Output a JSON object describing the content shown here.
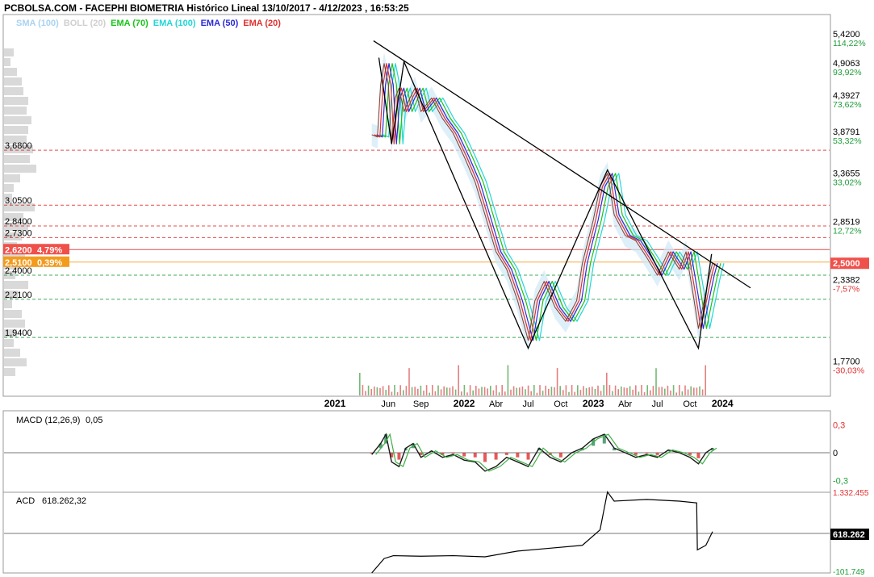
{
  "header": {
    "title": "PCBOLSA.COM - FACEPHI BIOMETRIA Histórico Lineal 13/10/2017 - 4/12/2023 , 16:53:25"
  },
  "legend": [
    {
      "label": "SMA (100)",
      "color": "#a9d3f2"
    },
    {
      "label": "BOLL (20)",
      "color": "#cfcfcf"
    },
    {
      "label": "EMA (70)",
      "color": "#19c419"
    },
    {
      "label": "EMA (100)",
      "color": "#22d6d6"
    },
    {
      "label": "EMA (50)",
      "color": "#2a2ad8"
    },
    {
      "label": "EMA (20)",
      "color": "#e03030"
    }
  ],
  "right_axis": [
    {
      "price": "5,4200",
      "pct": "114,22%",
      "pct_color": "#1f9d3a"
    },
    {
      "price": "4,9063",
      "pct": "93,92%",
      "pct_color": "#1f9d3a"
    },
    {
      "price": "4,3927",
      "pct": "73,62%",
      "pct_color": "#1f9d3a"
    },
    {
      "price": "3,8791",
      "pct": "53,32%",
      "pct_color": "#1f9d3a"
    },
    {
      "price": "3,3655",
      "pct": "33,02%",
      "pct_color": "#1f9d3a"
    },
    {
      "price": "2,8519",
      "pct": "12,72%",
      "pct_color": "#1f9d3a"
    },
    {
      "price": "2,3382",
      "pct": "-7,57%",
      "pct_color": "#e03030"
    },
    {
      "price": "1,7700",
      "pct": "-30,03%",
      "pct_color": "#e03030"
    }
  ],
  "left_levels": [
    "3,6800",
    "3,0500",
    "2,8400",
    "2,7300",
    "2,4000",
    "2,2100",
    "1,9400"
  ],
  "left_badges": [
    {
      "price": "2,6200",
      "pct": "4,79%",
      "color": "#f0504a"
    },
    {
      "price": "2,5100",
      "pct": "0,39%",
      "color": "#f29b1d"
    }
  ],
  "current_price_badge": "2,5000",
  "x_axis_ticks": [
    {
      "label": "2021",
      "bold": true
    },
    {
      "label": "Jun",
      "bold": false
    },
    {
      "label": "Sep",
      "bold": false
    },
    {
      "label": "2022",
      "bold": true
    },
    {
      "label": "Abr",
      "bold": false
    },
    {
      "label": "Jul",
      "bold": false
    },
    {
      "label": "Oct",
      "bold": false
    },
    {
      "label": "2023",
      "bold": true
    },
    {
      "label": "Abr",
      "bold": false
    },
    {
      "label": "Jul",
      "bold": false
    },
    {
      "label": "Oct",
      "bold": false
    },
    {
      "label": "2024",
      "bold": true
    }
  ],
  "macd": {
    "label": "MACD (12,26,9)",
    "value": "0,05",
    "axis": [
      "0,3",
      "0",
      "-0,3"
    ]
  },
  "acd": {
    "label": "ACD",
    "value": "618.262,32",
    "axis_top": "1.332.455",
    "axis_bottom": "-101.749",
    "badge": "618.262"
  },
  "chart_data": {
    "type": "line",
    "title": "PCBOLSA.COM - FACEPHI BIOMETRIA Histórico Lineal 13/10/2017 - 4/12/2023 , 16:53:25",
    "price_series": [
      [
        "2021-04-15",
        3.88
      ],
      [
        "2021-05-01",
        3.85
      ],
      [
        "2021-05-10",
        4.6
      ],
      [
        "2021-05-20",
        4.95
      ],
      [
        "2021-06-01",
        4.6
      ],
      [
        "2021-06-10",
        3.76
      ],
      [
        "2021-06-20",
        4.4
      ],
      [
        "2021-07-01",
        4.55
      ],
      [
        "2021-07-15",
        4.2
      ],
      [
        "2021-08-01",
        4.4
      ],
      [
        "2021-08-15",
        4.55
      ],
      [
        "2021-09-01",
        4.2
      ],
      [
        "2021-10-01",
        4.4
      ],
      [
        "2021-11-01",
        4.1
      ],
      [
        "2021-12-01",
        3.9
      ],
      [
        "2022-01-01",
        3.6
      ],
      [
        "2022-02-01",
        3.3
      ],
      [
        "2022-03-01",
        2.95
      ],
      [
        "2022-04-01",
        2.6
      ],
      [
        "2022-05-01",
        2.45
      ],
      [
        "2022-06-01",
        2.2
      ],
      [
        "2022-07-01",
        1.92
      ],
      [
        "2022-07-20",
        2.2
      ],
      [
        "2022-08-15",
        2.35
      ],
      [
        "2022-09-15",
        2.15
      ],
      [
        "2022-10-15",
        2.05
      ],
      [
        "2022-11-15",
        2.2
      ],
      [
        "2022-12-01",
        2.5
      ],
      [
        "2023-01-01",
        2.9
      ],
      [
        "2023-01-20",
        3.25
      ],
      [
        "2023-02-10",
        3.4
      ],
      [
        "2023-03-01",
        2.95
      ],
      [
        "2023-04-01",
        2.75
      ],
      [
        "2023-05-01",
        2.7
      ],
      [
        "2023-06-01",
        2.55
      ],
      [
        "2023-07-01",
        2.4
      ],
      [
        "2023-08-01",
        2.6
      ],
      [
        "2023-09-01",
        2.45
      ],
      [
        "2023-09-20",
        2.6
      ],
      [
        "2023-10-10",
        2.25
      ],
      [
        "2023-10-25",
        2.0
      ],
      [
        "2023-11-10",
        2.2
      ],
      [
        "2023-11-25",
        2.4
      ],
      [
        "2023-12-04",
        2.5
      ]
    ],
    "trendlines": [
      {
        "points": [
          [
            "2021-04-20",
            5.35
          ],
          [
            "2023-11-25",
            2.52
          ]
        ],
        "color": "#000000"
      },
      {
        "points": [
          [
            "2021-05-05",
            5.05
          ],
          [
            "2021-06-10",
            3.76
          ],
          [
            "2021-07-15",
            4.98
          ],
          [
            "2022-07-01",
            1.87
          ],
          [
            "2023-02-10",
            3.44
          ],
          [
            "2023-10-25",
            1.87
          ],
          [
            "2023-12-01",
            2.58
          ]
        ],
        "color": "#000000"
      }
    ],
    "horizontal_levels": [
      {
        "value": 3.68,
        "color": "#e03030",
        "style": "dashed"
      },
      {
        "value": 3.05,
        "color": "#e03030",
        "style": "dashed"
      },
      {
        "value": 2.84,
        "color": "#e03030",
        "style": "dashed"
      },
      {
        "value": 2.73,
        "color": "#e03030",
        "style": "dashed"
      },
      {
        "value": 2.62,
        "color": "#e03030",
        "style": "solid"
      },
      {
        "value": 2.51,
        "color": "#f29b1d",
        "style": "solid"
      },
      {
        "value": 2.4,
        "color": "#1f9d3a",
        "style": "dashed"
      },
      {
        "value": 2.21,
        "color": "#1f9d3a",
        "style": "dashed"
      },
      {
        "value": 1.94,
        "color": "#1f9d3a",
        "style": "dashed"
      }
    ],
    "ylim": [
      1.7,
      5.6
    ],
    "xlim": [
      "2020-12-25",
      "2024-02-15"
    ],
    "macd_series": [
      [
        "2021-04-15",
        -0.02
      ],
      [
        "2021-05-10",
        0.1
      ],
      [
        "2021-05-25",
        0.2
      ],
      [
        "2021-06-10",
        -0.1
      ],
      [
        "2021-07-01",
        -0.15
      ],
      [
        "2021-07-20",
        0.05
      ],
      [
        "2021-08-10",
        0.1
      ],
      [
        "2021-09-01",
        -0.05
      ],
      [
        "2021-10-01",
        0.02
      ],
      [
        "2021-11-01",
        -0.05
      ],
      [
        "2021-12-01",
        -0.02
      ],
      [
        "2022-01-01",
        -0.08
      ],
      [
        "2022-02-01",
        -0.1
      ],
      [
        "2022-03-01",
        -0.2
      ],
      [
        "2022-04-01",
        -0.15
      ],
      [
        "2022-05-01",
        -0.05
      ],
      [
        "2022-06-01",
        -0.1
      ],
      [
        "2022-07-01",
        -0.15
      ],
      [
        "2022-08-01",
        0.05
      ],
      [
        "2022-09-01",
        -0.05
      ],
      [
        "2022-10-01",
        -0.1
      ],
      [
        "2022-11-01",
        0.0
      ],
      [
        "2022-12-01",
        0.05
      ],
      [
        "2023-01-01",
        0.15
      ],
      [
        "2023-02-01",
        0.2
      ],
      [
        "2023-03-01",
        0.05
      ],
      [
        "2023-04-01",
        0.0
      ],
      [
        "2023-05-01",
        -0.05
      ],
      [
        "2023-06-01",
        -0.02
      ],
      [
        "2023-07-01",
        -0.05
      ],
      [
        "2023-08-01",
        0.03
      ],
      [
        "2023-09-01",
        0.0
      ],
      [
        "2023-10-01",
        -0.05
      ],
      [
        "2023-10-25",
        -0.12
      ],
      [
        "2023-11-15",
        0.0
      ],
      [
        "2023-12-04",
        0.05
      ]
    ],
    "acd_series": [
      [
        "2021-04-15",
        -101749
      ],
      [
        "2021-05-20",
        150000
      ],
      [
        "2021-06-15",
        200000
      ],
      [
        "2021-09-01",
        190000
      ],
      [
        "2021-12-01",
        200000
      ],
      [
        "2022-03-01",
        180000
      ],
      [
        "2022-06-01",
        280000
      ],
      [
        "2022-09-01",
        330000
      ],
      [
        "2022-12-01",
        380000
      ],
      [
        "2023-01-20",
        650000
      ],
      [
        "2023-02-10",
        1310000
      ],
      [
        "2023-03-01",
        1150000
      ],
      [
        "2023-06-01",
        1180000
      ],
      [
        "2023-09-01",
        1150000
      ],
      [
        "2023-10-20",
        1120000
      ],
      [
        "2023-10-22",
        300000
      ],
      [
        "2023-11-15",
        380000
      ],
      [
        "2023-12-04",
        618262
      ]
    ],
    "macd_ylim": [
      -0.35,
      0.35
    ],
    "acd_ylim": [
      -101749,
      1332455
    ]
  }
}
